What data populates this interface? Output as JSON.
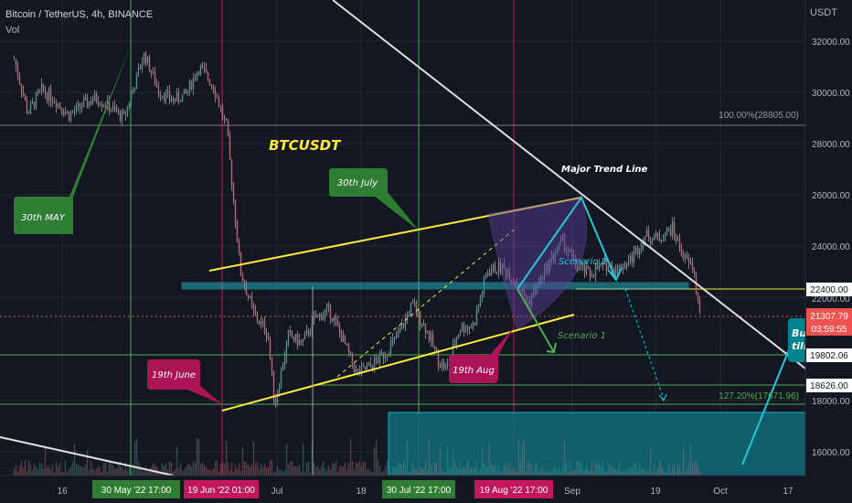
{
  "header": {
    "symbol_line": "Bitcoin / TetherUS, 4h, BINANCE",
    "vol_label": "Vol",
    "currency": "USDT"
  },
  "colors": {
    "background": "#131722",
    "up": "#26a69a",
    "down": "#ef5350",
    "trend": "#ffeb3b",
    "zone": "#00bcd4",
    "grid": "#2a2e39"
  },
  "chart_data": {
    "type": "candlestick",
    "title": "BTCUSDT",
    "x_tick_labels": [
      "16",
      "Jul",
      "18",
      "Sep",
      "19",
      "Oct",
      "17"
    ],
    "x_highlight_labels": [
      {
        "text": "30 May '22  17:00",
        "color": "#2e7d32"
      },
      {
        "text": "19 Jun '22  01:00",
        "color": "#c2185b"
      },
      {
        "text": "30 Jul '22  17:00",
        "color": "#2e7d32"
      },
      {
        "text": "19 Aug '22  17:00",
        "color": "#c2185b"
      }
    ],
    "y_tick_labels": [
      "32000.00",
      "30000.00",
      "28000.00",
      "26000.00",
      "24000.00",
      "22000.00",
      "18000.00",
      "16000.00"
    ],
    "ylim": [
      15100,
      33700
    ],
    "price_tags": [
      {
        "text": "22400.00",
        "bg": "#ffffff",
        "fg": "#131722"
      },
      {
        "text": "21307.79",
        "bg": "#ef5350",
        "fg": "#ffffff"
      },
      {
        "text": "03:59:55",
        "bg": "#ef5350",
        "fg": "#ffffff"
      },
      {
        "text": "19802.06",
        "bg": "#ffffff",
        "fg": "#131722"
      },
      {
        "text": "18626.00",
        "bg": "#ffffff",
        "fg": "#131722"
      }
    ],
    "fib_labels": [
      "100.00%(28805.00)",
      "127.20%(17671.96)"
    ],
    "annotations": {
      "callouts": [
        "30th MAY",
        "30th July",
        "19th June",
        "19th Aug"
      ],
      "chart_title": "BTCUSDT",
      "trend_label": "Major Trend Line",
      "scenario_2": "Scenario 2",
      "scenario_1": "Scenario 1",
      "buy_note_line1": "Buy",
      "buy_note_line2": "till"
    },
    "key_levels": [
      28805,
      22400,
      19802.06,
      18626,
      17671.96
    ],
    "last_price": 21307.79,
    "price_path": [
      {
        "t": "2022-05-11",
        "p": 31300
      },
      {
        "t": "2022-05-13",
        "p": 29200
      },
      {
        "t": "2022-05-15",
        "p": 30100
      },
      {
        "t": "2022-05-17",
        "p": 29700
      },
      {
        "t": "2022-05-19",
        "p": 29100
      },
      {
        "t": "2022-05-21",
        "p": 29500
      },
      {
        "t": "2022-05-23",
        "p": 29800
      },
      {
        "t": "2022-05-25",
        "p": 29400
      },
      {
        "t": "2022-05-27",
        "p": 29000
      },
      {
        "t": "2022-05-30",
        "p": 31500
      },
      {
        "t": "2022-06-01",
        "p": 30100
      },
      {
        "t": "2022-06-03",
        "p": 29700
      },
      {
        "t": "2022-06-05",
        "p": 29900
      },
      {
        "t": "2022-06-07",
        "p": 31000
      },
      {
        "t": "2022-06-09",
        "p": 30300
      },
      {
        "t": "2022-06-11",
        "p": 28600
      },
      {
        "t": "2022-06-13",
        "p": 23000
      },
      {
        "t": "2022-06-15",
        "p": 21300
      },
      {
        "t": "2022-06-17",
        "p": 20600
      },
      {
        "t": "2022-06-18",
        "p": 17800
      },
      {
        "t": "2022-06-20",
        "p": 20500
      },
      {
        "t": "2022-06-22",
        "p": 20200
      },
      {
        "t": "2022-06-24",
        "p": 21200
      },
      {
        "t": "2022-06-26",
        "p": 21500
      },
      {
        "t": "2022-06-28",
        "p": 20300
      },
      {
        "t": "2022-06-30",
        "p": 19000
      },
      {
        "t": "2022-07-02",
        "p": 19300
      },
      {
        "t": "2022-07-04",
        "p": 19800
      },
      {
        "t": "2022-07-06",
        "p": 20500
      },
      {
        "t": "2022-07-08",
        "p": 21700
      },
      {
        "t": "2022-07-10",
        "p": 20800
      },
      {
        "t": "2022-07-12",
        "p": 19500
      },
      {
        "t": "2022-07-13",
        "p": 19200
      },
      {
        "t": "2022-07-15",
        "p": 20800
      },
      {
        "t": "2022-07-17",
        "p": 20900
      },
      {
        "t": "2022-07-19",
        "p": 23000
      },
      {
        "t": "2022-07-21",
        "p": 23200
      },
      {
        "t": "2022-07-23",
        "p": 22700
      },
      {
        "t": "2022-07-25",
        "p": 21800
      },
      {
        "t": "2022-07-27",
        "p": 22800
      },
      {
        "t": "2022-07-29",
        "p": 23800
      },
      {
        "t": "2022-07-30",
        "p": 24200
      },
      {
        "t": "2022-08-01",
        "p": 23200
      },
      {
        "t": "2022-08-03",
        "p": 22900
      },
      {
        "t": "2022-08-05",
        "p": 23300
      },
      {
        "t": "2022-08-07",
        "p": 23100
      },
      {
        "t": "2022-08-09",
        "p": 23500
      },
      {
        "t": "2022-08-11",
        "p": 24400
      },
      {
        "t": "2022-08-13",
        "p": 24300
      },
      {
        "t": "2022-08-15",
        "p": 24700
      },
      {
        "t": "2022-08-16",
        "p": 24000
      },
      {
        "t": "2022-08-17",
        "p": 23400
      },
      {
        "t": "2022-08-18",
        "p": 23200
      },
      {
        "t": "2022-08-19",
        "p": 21300
      }
    ]
  }
}
